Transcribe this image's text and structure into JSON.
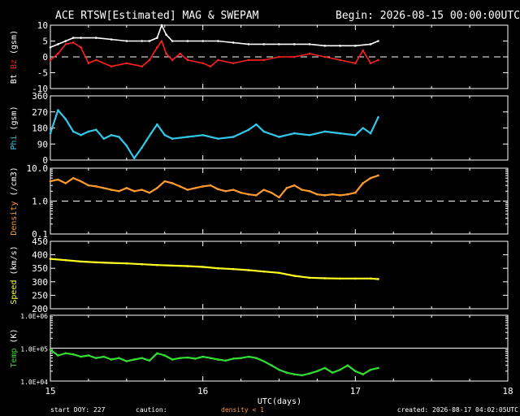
{
  "header": {
    "title": "ACE RTSW[Estimated] MAG & SWEPAM",
    "begin": "Begin: 2026-08-15 00:00:00UTC"
  },
  "footer": {
    "start_doy": "start DOY: 227",
    "caution": "caution:",
    "density_note": "density < 1",
    "created": "created: 2026-08-17 04:02:05UTC"
  },
  "colors": {
    "background": "#000000",
    "frame": "#ffffff",
    "bt": "#ffffff",
    "bz": "#ff2020",
    "phi": "#33c8e8",
    "density": "#ff9a2e",
    "speed": "#ffff22",
    "temp": "#33dd33",
    "caution": "#ff9a2e"
  },
  "chart_data": [
    {
      "type": "line",
      "name": "Bt Bz",
      "ylabel": {
        "parts": [
          "Bt",
          "Bz",
          "(gsm)"
        ],
        "colors": [
          "#ffffff",
          "#ff2020",
          "#ffffff"
        ]
      },
      "ylim": [
        -10,
        10
      ],
      "yticks": [
        -10,
        -5,
        0,
        5,
        10
      ],
      "ytick_labels": [
        "-10",
        "-5",
        "0",
        "5",
        "10"
      ],
      "ref_line": 0,
      "series": [
        {
          "name": "Bt",
          "color": "#ffffff",
          "x": [
            15.0,
            15.05,
            15.1,
            15.15,
            15.2,
            15.3,
            15.4,
            15.5,
            15.6,
            15.65,
            15.7,
            15.73,
            15.76,
            15.8,
            15.9,
            16.0,
            16.1,
            16.2,
            16.3,
            16.4,
            16.5,
            16.6,
            16.7,
            16.8,
            16.9,
            17.0,
            17.1,
            17.15
          ],
          "y": [
            3,
            4,
            5,
            6,
            6,
            6,
            5.5,
            5,
            5,
            5,
            6,
            10,
            7,
            5,
            5,
            5,
            5,
            4.5,
            4,
            4,
            4,
            4,
            4,
            3.5,
            3.5,
            3.5,
            4,
            5
          ]
        },
        {
          "name": "Bz",
          "color": "#ff2020",
          "x": [
            15.0,
            15.05,
            15.1,
            15.15,
            15.2,
            15.25,
            15.3,
            15.4,
            15.5,
            15.6,
            15.65,
            15.7,
            15.73,
            15.76,
            15.8,
            15.85,
            15.9,
            16.0,
            16.05,
            16.1,
            16.2,
            16.3,
            16.4,
            16.5,
            16.6,
            16.7,
            16.8,
            16.9,
            17.0,
            17.05,
            17.1,
            17.15
          ],
          "y": [
            -1,
            1,
            4,
            4.5,
            3,
            -2,
            -1,
            -3,
            -2,
            -3,
            -1,
            3,
            5,
            1,
            -1,
            1,
            -1,
            -2,
            -3,
            -1,
            -2,
            -1,
            -1,
            0,
            0,
            1,
            0,
            -1,
            -2,
            2,
            -2,
            -1
          ]
        }
      ]
    },
    {
      "type": "scatter",
      "name": "Phi",
      "ylabel": {
        "parts": [
          "Phi",
          "(gsm)"
        ],
        "colors": [
          "#33c8e8",
          "#ffffff"
        ]
      },
      "ylim": [
        0,
        360
      ],
      "yticks": [
        0,
        90,
        180,
        270,
        360
      ],
      "ytick_labels": [
        "0",
        "90",
        "180",
        "270",
        "360"
      ],
      "series": [
        {
          "name": "Phi",
          "color": "#33c8e8",
          "x": [
            15.0,
            15.05,
            15.1,
            15.15,
            15.2,
            15.25,
            15.3,
            15.35,
            15.4,
            15.45,
            15.5,
            15.55,
            15.6,
            15.63,
            15.66,
            15.7,
            15.75,
            15.8,
            15.9,
            16.0,
            16.1,
            16.2,
            16.3,
            16.35,
            16.4,
            16.5,
            16.6,
            16.7,
            16.8,
            16.9,
            17.0,
            17.05,
            17.1,
            17.15
          ],
          "y": [
            150,
            280,
            230,
            160,
            140,
            160,
            170,
            120,
            140,
            130,
            80,
            10,
            70,
            110,
            150,
            200,
            140,
            120,
            130,
            140,
            120,
            130,
            170,
            200,
            160,
            130,
            150,
            140,
            160,
            150,
            140,
            180,
            150,
            240
          ]
        }
      ]
    },
    {
      "type": "scatter",
      "name": "Density",
      "ylabel": {
        "parts": [
          "Density",
          "(/cm3)"
        ],
        "colors": [
          "#ff9a2e",
          "#ffffff"
        ]
      },
      "yscale": "log",
      "ylim": [
        0.1,
        10
      ],
      "yticks": [
        0.1,
        1,
        10
      ],
      "ytick_labels": [
        "0.1",
        "1.0",
        "10.0"
      ],
      "ref_line": 1,
      "series": [
        {
          "name": "Density",
          "color": "#ff9a2e",
          "x": [
            15.0,
            15.05,
            15.1,
            15.15,
            15.2,
            15.25,
            15.3,
            15.35,
            15.4,
            15.45,
            15.5,
            15.55,
            15.6,
            15.65,
            15.7,
            15.75,
            15.8,
            15.85,
            15.9,
            15.95,
            16.0,
            16.05,
            16.1,
            16.15,
            16.2,
            16.25,
            16.3,
            16.35,
            16.4,
            16.45,
            16.5,
            16.55,
            16.6,
            16.65,
            16.7,
            16.75,
            16.8,
            16.85,
            16.9,
            16.95,
            17.0,
            17.05,
            17.1,
            17.15
          ],
          "y": [
            4,
            4.5,
            3.5,
            5,
            4,
            3,
            2.8,
            2.5,
            2.2,
            2,
            2.5,
            2,
            2.2,
            1.8,
            2.5,
            4,
            3.5,
            2.8,
            2.2,
            2.5,
            2.8,
            3,
            2.3,
            2,
            2.2,
            1.8,
            1.6,
            1.5,
            2.2,
            1.8,
            1.3,
            2.5,
            3,
            2.2,
            2,
            1.6,
            1.5,
            1.6,
            1.5,
            1.6,
            1.8,
            3.5,
            5,
            6
          ]
        }
      ]
    },
    {
      "type": "scatter",
      "name": "Speed",
      "ylabel": {
        "parts": [
          "Speed",
          "(km/s)"
        ],
        "colors": [
          "#ffff22",
          "#ffffff"
        ]
      },
      "ylim": [
        200,
        450
      ],
      "yticks": [
        200,
        250,
        300,
        350,
        400,
        450
      ],
      "ytick_labels": [
        "200",
        "250",
        "300",
        "350",
        "400",
        "450"
      ],
      "series": [
        {
          "name": "Speed",
          "color": "#ffff22",
          "x": [
            15.0,
            15.1,
            15.2,
            15.3,
            15.4,
            15.5,
            15.6,
            15.7,
            15.8,
            15.9,
            16.0,
            16.1,
            16.2,
            16.3,
            16.4,
            16.5,
            16.6,
            16.7,
            16.8,
            16.9,
            17.0,
            17.1,
            17.15
          ],
          "y": [
            385,
            380,
            375,
            372,
            370,
            368,
            365,
            362,
            360,
            358,
            355,
            350,
            347,
            343,
            338,
            333,
            322,
            315,
            313,
            312,
            312,
            312,
            310
          ]
        }
      ]
    },
    {
      "type": "scatter",
      "name": "Temp",
      "ylabel": {
        "parts": [
          "Temp",
          "(K)"
        ],
        "colors": [
          "#33dd33",
          "#ffffff"
        ]
      },
      "yscale": "log",
      "ylim": [
        10000,
        1000000
      ],
      "yticks": [
        10000,
        100000,
        1000000
      ],
      "ytick_labels": [
        "1.0E+04",
        "1.0E+05",
        "1.0E+06"
      ],
      "ref_line": 100000,
      "series": [
        {
          "name": "Temp",
          "color": "#33dd33",
          "x": [
            15.0,
            15.05,
            15.1,
            15.15,
            15.2,
            15.25,
            15.3,
            15.35,
            15.4,
            15.45,
            15.5,
            15.55,
            15.6,
            15.65,
            15.7,
            15.75,
            15.8,
            15.85,
            15.9,
            15.95,
            16.0,
            16.05,
            16.1,
            16.15,
            16.2,
            16.25,
            16.3,
            16.35,
            16.4,
            16.45,
            16.5,
            16.55,
            16.6,
            16.65,
            16.7,
            16.75,
            16.8,
            16.85,
            16.9,
            16.95,
            17.0,
            17.05,
            17.1,
            17.15
          ],
          "y": [
            90000,
            60000,
            70000,
            65000,
            55000,
            60000,
            50000,
            55000,
            45000,
            50000,
            40000,
            45000,
            50000,
            42000,
            70000,
            60000,
            45000,
            50000,
            52000,
            48000,
            55000,
            50000,
            45000,
            42000,
            48000,
            50000,
            55000,
            50000,
            40000,
            30000,
            22000,
            18000,
            16000,
            15000,
            17000,
            20000,
            25000,
            18000,
            22000,
            30000,
            20000,
            16000,
            22000,
            25000
          ]
        }
      ]
    }
  ],
  "xaxis": {
    "label": "UTC(days)",
    "xlim": [
      15,
      18
    ],
    "ticks": [
      15,
      16,
      17,
      18
    ],
    "tick_labels": [
      "15",
      "16",
      "17",
      "18"
    ]
  }
}
